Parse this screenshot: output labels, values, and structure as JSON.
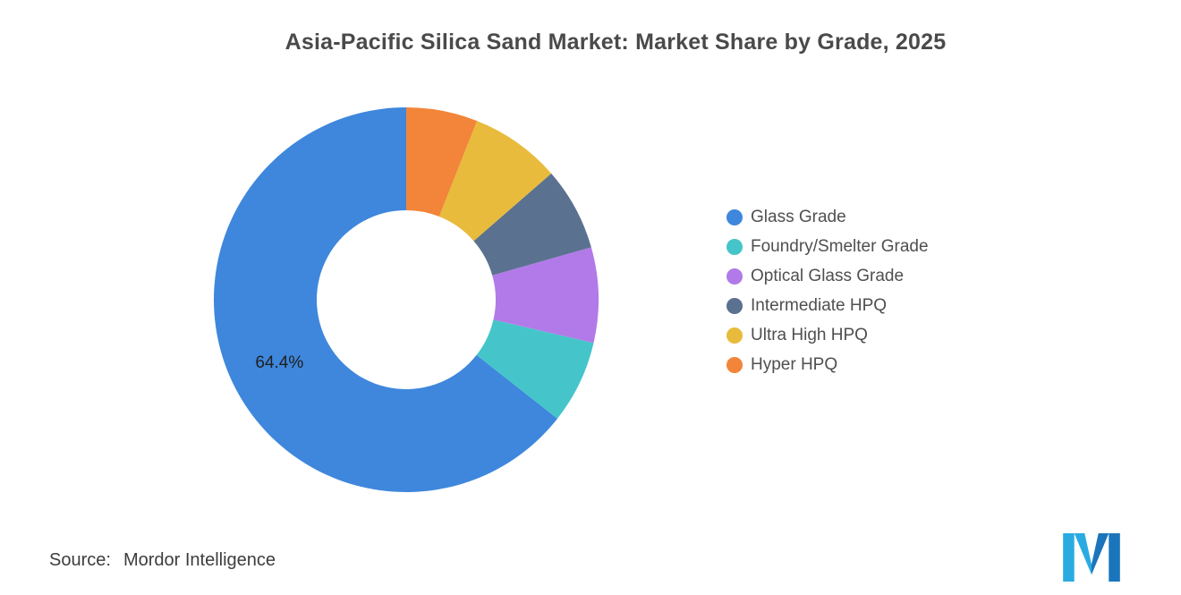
{
  "header": {
    "title": "Asia-Pacific Silica Sand Market: Market Share by Grade, 2025"
  },
  "chart_data": {
    "type": "pie",
    "subtype": "donut",
    "title": "Asia-Pacific Silica Sand Market: Market Share by Grade, 2025",
    "unit": "%",
    "start_angle_deg": 0,
    "direction": "counterclockwise",
    "legend_position": "right",
    "inner_radius_ratio": 0.465,
    "series": [
      {
        "name": "Glass Grade",
        "value": 64.4,
        "color": "#3E87DC",
        "data_label": "64.4%"
      },
      {
        "name": "Foundry/Smelter Grade",
        "value": 7.0,
        "color": "#45C5C9",
        "data_label": ""
      },
      {
        "name": "Optical Glass Grade",
        "value": 8.0,
        "color": "#B27AE8",
        "data_label": ""
      },
      {
        "name": "Intermediate HPQ",
        "value": 7.0,
        "color": "#5B7190",
        "data_label": ""
      },
      {
        "name": "Ultra High HPQ",
        "value": 7.6,
        "color": "#E8BB3D",
        "data_label": ""
      },
      {
        "name": "Hyper HPQ",
        "value": 6.0,
        "color": "#F28539",
        "data_label": ""
      }
    ]
  },
  "footer": {
    "source_label": "Source:",
    "source_value": "Mordor Intelligence",
    "logo_colors": {
      "light": "#29ABE2",
      "dark": "#1B75BC"
    }
  }
}
